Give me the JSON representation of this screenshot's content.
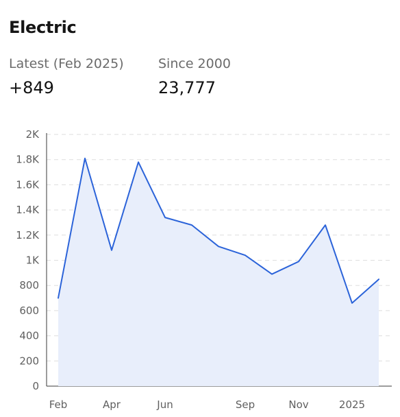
{
  "title": "Electric",
  "stats": {
    "latest_label": "Latest (Feb 2025)",
    "latest_value": "+849",
    "since_label": "Since 2000",
    "since_value": "23,777"
  },
  "colors": {
    "line": "#2b63d9",
    "area": "#e8eefb",
    "grid": "#dedede",
    "axis": "#3a3a3a"
  },
  "chart_data": {
    "type": "area",
    "x": [
      "2024-02",
      "2024-03",
      "2024-04",
      "2024-05",
      "2024-06",
      "2024-07",
      "2024-08",
      "2024-09",
      "2024-10",
      "2024-11",
      "2024-12",
      "2025-01",
      "2025-02"
    ],
    "series": [
      {
        "values": [
          700,
          1810,
          1080,
          1780,
          1340,
          1280,
          1110,
          1040,
          890,
          990,
          1280,
          660,
          849
        ]
      }
    ],
    "ylim": [
      0,
      2000
    ],
    "yticks": [
      0,
      200,
      400,
      600,
      800,
      1000,
      1200,
      1400,
      1600,
      1800,
      2000
    ],
    "ytick_labels": [
      "0",
      "200",
      "400",
      "600",
      "800",
      "1K",
      "1.2K",
      "1.4K",
      "1.6K",
      "1.8K",
      "2K"
    ],
    "xtick_labels": [
      {
        "at": "2024-02",
        "label": "Feb"
      },
      {
        "at": "2024-04",
        "label": "Apr"
      },
      {
        "at": "2024-06",
        "label": "Jun"
      },
      {
        "at": "2024-09",
        "label": "Sep"
      },
      {
        "at": "2024-11",
        "label": "Nov"
      },
      {
        "at": "2025-01",
        "label": "2025"
      }
    ],
    "grid": true,
    "legend": "none"
  }
}
